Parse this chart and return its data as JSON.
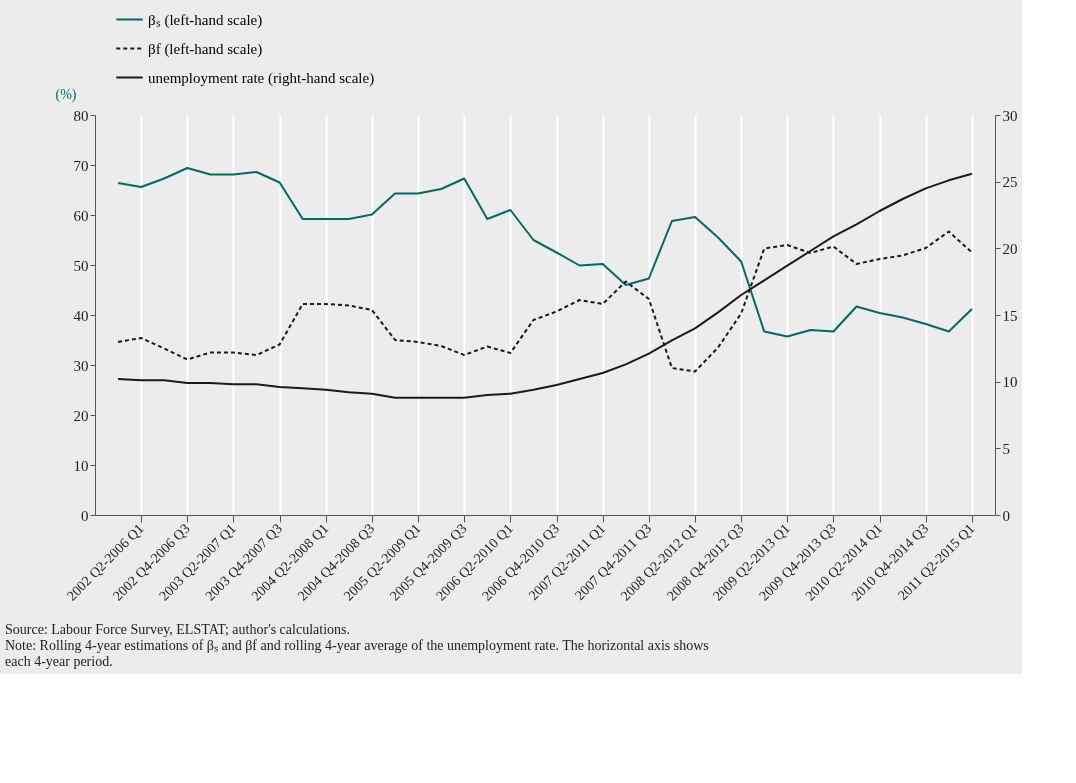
{
  "chart_data": {
    "type": "line",
    "ylabel": "(%)",
    "categories": [
      null,
      "2002 Q2-2006 Q1",
      null,
      "2002 Q4-2006 Q3",
      null,
      "2003 Q2-2007 Q1",
      null,
      "2003 Q4-2007 Q3",
      null,
      "2004 Q2-2008 Q1",
      null,
      "2004 Q4-2008 Q3",
      null,
      "2005 Q2-2009 Q1",
      null,
      "2005 Q4-2009 Q3",
      null,
      "2006 Q2-2010 Q1",
      null,
      "2006 Q4-2010 Q3",
      null,
      "2007 Q2-2011 Q1",
      null,
      "2007 Q4-2011 Q3",
      null,
      "2008 Q2-2012 Q1",
      null,
      "2008 Q4-2012 Q3",
      null,
      "2009 Q2-2013 Q1",
      null,
      "2009 Q4-2013 Q3",
      null,
      "2010 Q2-2014 Q1",
      null,
      "2010 Q4-2014 Q3",
      null,
      "2011 Q2-2015 Q1"
    ],
    "series": [
      {
        "name": "βₛ (left-hand scale)",
        "color": "#006b5e",
        "line_style": "solid",
        "values": [
          66.4,
          65.6,
          67.3,
          69.4,
          68.1,
          68.1,
          68.6,
          66.5,
          59.2,
          59.2,
          59.2,
          60.1,
          64.3,
          64.3,
          65.2,
          67.3,
          59.2,
          61.0,
          55.0,
          52.5,
          49.9,
          50.2,
          46.0,
          47.3,
          58.8,
          59.6,
          55.5,
          50.7,
          36.7,
          35.7,
          37.0,
          36.7,
          41.7,
          40.4,
          39.5,
          38.2,
          36.7,
          41.2
        ]
      },
      {
        "name": "βf (left-hand scale)",
        "color": "#1a1a1a",
        "line_style": "dashed",
        "values": [
          34.6,
          35.4,
          33.3,
          31.1,
          32.5,
          32.5,
          32.0,
          34.1,
          42.2,
          42.2,
          41.9,
          41.0,
          35.0,
          34.6,
          33.8,
          32.0,
          33.7,
          32.4,
          39.0,
          40.7,
          43.0,
          42.2,
          46.7,
          43.2,
          29.4,
          28.7,
          33.5,
          40.3,
          53.3,
          54.0,
          52.4,
          53.7,
          50.2,
          51.2,
          51.9,
          53.4,
          56.7,
          52.5
        ]
      },
      {
        "name": "unemployment rate (right-hand scale)",
        "color": "#1a1a1a",
        "line_style": "solid",
        "axis": "y2",
        "values": [
          10.2,
          10.1,
          10.1,
          9.9,
          9.9,
          9.8,
          9.8,
          9.6,
          9.5,
          9.4,
          9.2,
          9.1,
          8.8,
          8.8,
          8.8,
          8.8,
          9.0,
          9.1,
          9.4,
          9.75,
          10.2,
          10.65,
          11.3,
          12.1,
          13.1,
          14.0,
          15.2,
          16.5,
          17.6,
          18.7,
          19.8,
          20.9,
          21.8,
          22.8,
          23.7,
          24.5,
          25.1,
          25.6
        ]
      }
    ],
    "ylim": [
      0,
      80
    ],
    "yticks": [
      0,
      10,
      20,
      30,
      40,
      50,
      60,
      70,
      80
    ],
    "y2lim": [
      0,
      30
    ],
    "y2ticks": [
      0,
      5,
      10,
      15,
      20,
      25,
      30
    ],
    "grid": "x",
    "legend": "top left",
    "annotations": [
      "Source: Labour Force Survey, ELSTAT; author's calculations.",
      "Note: Rolling 4-year estimations of βₛ and βf and rolling 4-year average of the unemployment rate. The horizontal axis shows each 4-year period."
    ]
  }
}
